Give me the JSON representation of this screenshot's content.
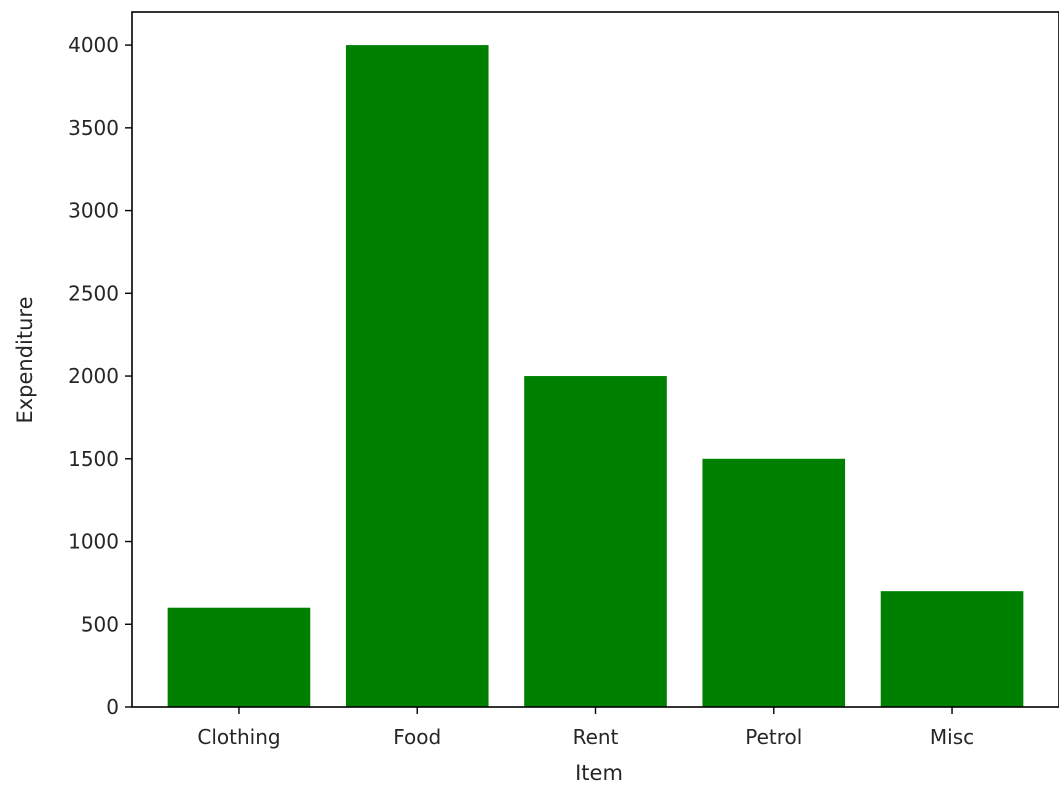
{
  "chart_data": {
    "type": "bar",
    "title": "",
    "xlabel": "Item",
    "ylabel": "Expenditure",
    "categories": [
      "Clothing",
      "Food",
      "Rent",
      "Petrol",
      "Misc"
    ],
    "values": [
      600,
      4000,
      2000,
      1500,
      700
    ],
    "ylim": [
      0,
      4200
    ],
    "yticks": [
      0,
      500,
      1000,
      1500,
      2000,
      2500,
      3000,
      3500,
      4000
    ],
    "bar_color": "#008000",
    "grid": false,
    "legend": "none"
  }
}
